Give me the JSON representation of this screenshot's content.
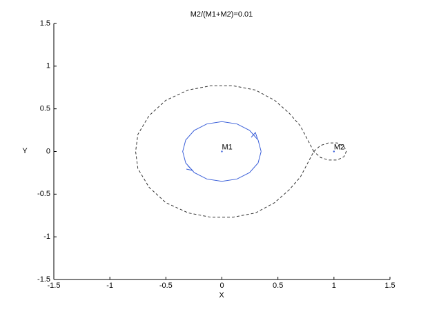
{
  "chart_data": {
    "type": "line",
    "title": "M2/(M1+M2)=0.01",
    "x_label": "X",
    "y_label": "Y",
    "xlim": [
      -1.5,
      1.5
    ],
    "ylim": [
      -1.5,
      1.5
    ],
    "xticks": [
      -1.5,
      -1,
      -0.5,
      0,
      0.5,
      1,
      1.5
    ],
    "yticks": [
      -1.5,
      -1,
      -0.5,
      0,
      0.5,
      1,
      1.5
    ],
    "series": [
      {
        "color": "#3a5fd9",
        "dash": false,
        "x": [
          0.35,
          0.323,
          0.247,
          0.134,
          0,
          -0.134,
          -0.247,
          -0.323,
          -0.35,
          -0.323,
          -0.247,
          -0.134,
          0,
          0.134,
          0.247,
          0.323,
          0.35
        ],
        "y": [
          0,
          0.134,
          0.247,
          0.323,
          0.35,
          0.323,
          0.247,
          0.134,
          0,
          -0.134,
          -0.247,
          -0.323,
          -0.35,
          -0.323,
          -0.247,
          -0.134,
          0
        ]
      },
      {
        "color": "#333333",
        "dash": true,
        "x": [
          0.82,
          0.76,
          0.7,
          0.6,
          0.47,
          0.3,
          0.1,
          -0.1,
          -0.3,
          -0.5,
          -0.65,
          -0.75,
          -0.77,
          -0.75,
          -0.65,
          -0.5,
          -0.3,
          -0.1,
          0.1,
          0.3,
          0.47,
          0.6,
          0.7,
          0.76,
          0.82,
          0.88,
          0.95,
          1.03,
          1.09,
          1.11,
          1.09,
          1.03,
          0.95,
          0.88,
          0.82
        ],
        "y": [
          0,
          0.15,
          0.3,
          0.45,
          0.6,
          0.72,
          0.77,
          0.77,
          0.72,
          0.6,
          0.42,
          0.2,
          0,
          -0.2,
          -0.42,
          -0.6,
          -0.72,
          -0.77,
          -0.77,
          -0.72,
          -0.6,
          -0.45,
          -0.3,
          -0.15,
          0,
          0.07,
          0.1,
          0.1,
          0.06,
          0,
          -0.06,
          -0.1,
          -0.1,
          -0.07,
          0
        ]
      }
    ],
    "annotations": [
      {
        "text": "M1",
        "x": 0,
        "y": 0
      },
      {
        "text": "M2",
        "x": 1,
        "y": 0
      }
    ]
  }
}
